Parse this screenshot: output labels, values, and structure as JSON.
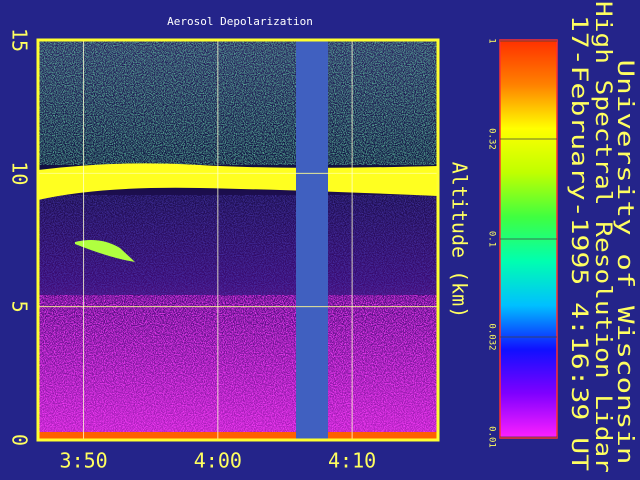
{
  "chart_data": {
    "type": "heatmap",
    "title": "Aerosol Depolarization",
    "y_label": "Altitude (km)",
    "ylim": [
      0,
      15
    ],
    "yticks": [
      0,
      5,
      10,
      15
    ],
    "xlim": [
      226.6,
      256.4
    ],
    "xticks": [
      {
        "value": 230,
        "label": "3:50"
      },
      {
        "value": 240,
        "label": "4:00"
      },
      {
        "value": 250,
        "label": "4:10"
      }
    ],
    "grid": true,
    "colorbar": {
      "log": true,
      "lim": [
        0.01,
        1
      ],
      "ticks": [
        1,
        0.32,
        0.1,
        0.032,
        0.01
      ],
      "colors": [
        "#ff20ff",
        "#8000ff",
        "#1010ff",
        "#00c0ff",
        "#00ffb0",
        "#40ff40",
        "#c0ff00",
        "#ffff00",
        "#ff8000",
        "#ff3000"
      ]
    },
    "info_lines": [
      "University of Wisconsin",
      "High Spectral Resolution Lidar",
      "17-February-1995   4:16:39 UT"
    ]
  }
}
